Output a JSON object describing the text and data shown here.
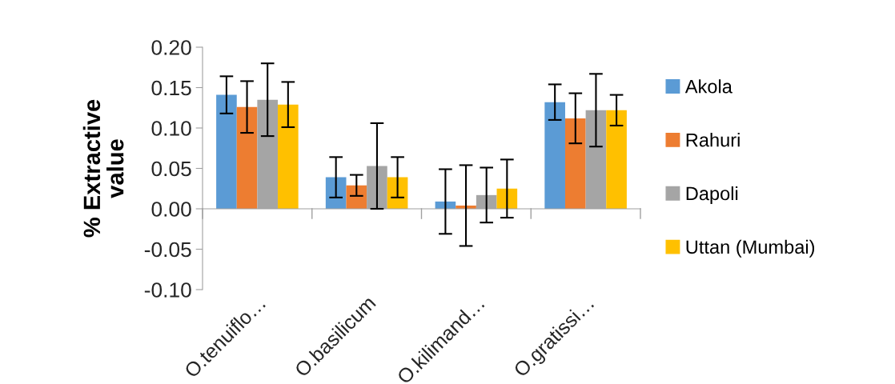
{
  "chart_data": {
    "type": "bar",
    "ylabel": "% Extractive\nvalue",
    "categories": [
      "O.tenuiflo…",
      "O.basilicum",
      "O.kilimand…",
      "O.gratissi…"
    ],
    "series": [
      {
        "name": "Akola",
        "color": "#5b9bd5",
        "values": [
          0.141,
          0.039,
          0.009,
          0.132
        ],
        "errors": [
          0.023,
          0.025,
          0.04,
          0.022
        ]
      },
      {
        "name": "Rahuri",
        "color": "#ed7d31",
        "values": [
          0.126,
          0.029,
          0.004,
          0.112
        ],
        "errors": [
          0.032,
          0.013,
          0.05,
          0.031
        ]
      },
      {
        "name": "Dapoli",
        "color": "#a5a5a5",
        "values": [
          0.135,
          0.053,
          0.017,
          0.122
        ],
        "errors": [
          0.045,
          0.053,
          0.034,
          0.045
        ]
      },
      {
        "name": "Uttan (Mumbai)",
        "color": "#ffc000",
        "values": [
          0.129,
          0.039,
          0.025,
          0.122
        ],
        "errors": [
          0.028,
          0.025,
          0.036,
          0.019
        ]
      }
    ],
    "ylim": [
      -0.1,
      0.2
    ],
    "yticks": [
      {
        "value": -0.1,
        "label": "-0.10"
      },
      {
        "value": -0.05,
        "label": "-0.05"
      },
      {
        "value": 0,
        "label": "0.00"
      },
      {
        "value": 0.05,
        "label": "0.05"
      },
      {
        "value": 0.1,
        "label": "0.10"
      },
      {
        "value": 0.15,
        "label": "0.15"
      },
      {
        "value": 0.2,
        "label": "0.20"
      }
    ],
    "legend": "right"
  }
}
